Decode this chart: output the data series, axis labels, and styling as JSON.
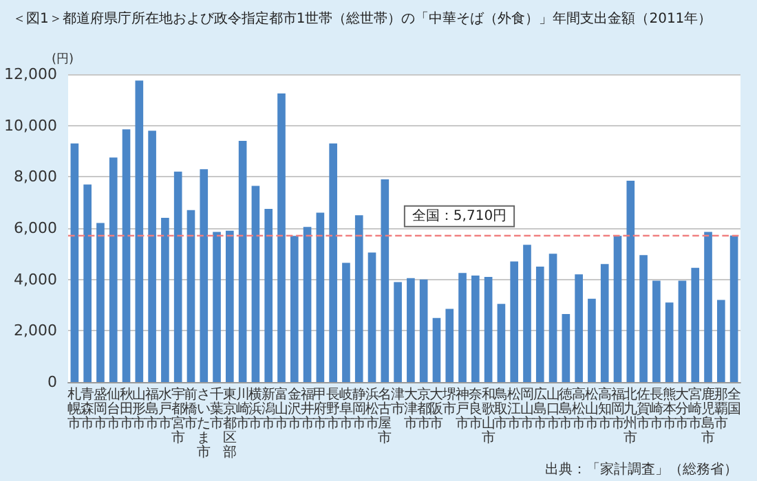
{
  "chart_data": {
    "type": "bar",
    "title": "＜図1＞都道府県庁所在地および政令指定都市1世帯（総世帯）の「中華そば（外食）」年間支出金額（2011年）",
    "ylabel": "(円)",
    "categories": [
      "札幌市",
      "青森市",
      "盛岡市",
      "仙台市",
      "秋田市",
      "山形市",
      "福島市",
      "水戸市",
      "宇都宮市",
      "前橋市",
      "さいたま市",
      "千葉市",
      "東京都区部",
      "川崎市",
      "横浜市",
      "新潟市",
      "富山市",
      "金沢市",
      "福井市",
      "甲府市",
      "長野市",
      "岐阜市",
      "静岡市",
      "浜松市",
      "名古屋市",
      "津市",
      "大津市",
      "京都市",
      "大阪市",
      "堺市",
      "神戸市",
      "奈良市",
      "和歌山市",
      "鳥取市",
      "松江市",
      "岡山市",
      "広島市",
      "山口市",
      "徳島市",
      "高松市",
      "松山市",
      "高知市",
      "福岡市",
      "北九州市",
      "佐賀市",
      "長崎市",
      "熊本市",
      "大分市",
      "宮崎市",
      "鹿児島市",
      "那覇市",
      "全国"
    ],
    "values": [
      9300,
      7700,
      6200,
      8750,
      9850,
      11750,
      9800,
      6400,
      8200,
      6700,
      8300,
      5850,
      5900,
      9400,
      7650,
      6750,
      11250,
      5700,
      6050,
      6600,
      9300,
      4650,
      6500,
      5050,
      7900,
      3900,
      4050,
      4000,
      2500,
      2850,
      4250,
      4150,
      4100,
      3050,
      4700,
      5350,
      4500,
      5000,
      2650,
      4200,
      3250,
      4600,
      5700,
      7850,
      4950,
      3950,
      3100,
      3950,
      4450,
      5850,
      3200,
      5710
    ],
    "color": "#4a86c8",
    "ylim": [
      0,
      12000
    ],
    "yticks": [
      0,
      {
        "value": 2000,
        "label": "2,000"
      },
      {
        "value": 4000,
        "label": "4,000"
      },
      {
        "value": 6000,
        "label": "6,000"
      },
      {
        "value": 8000,
        "label": "8,000"
      },
      {
        "value": 10000,
        "label": "10,000"
      },
      {
        "value": 12000,
        "label": "12,000"
      }
    ],
    "grid": "y",
    "ref_lines": [
      {
        "axis": "y",
        "value": 5710,
        "label": "全国：5,710円",
        "color": "#f08080",
        "line_style": "dashed"
      }
    ],
    "annotations": [
      "出典：「家計調査」（総務省）"
    ]
  }
}
